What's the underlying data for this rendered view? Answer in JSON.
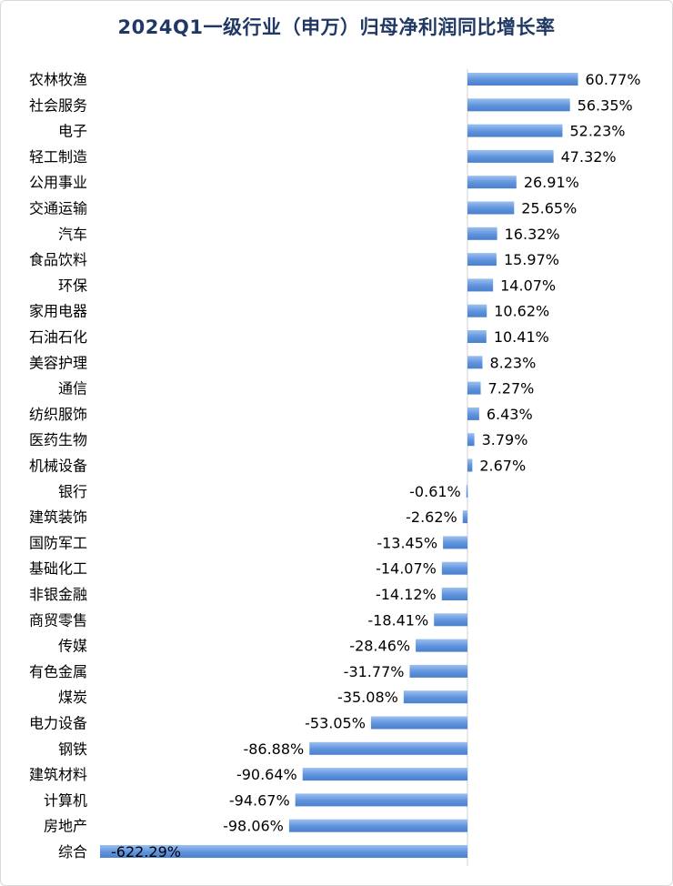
{
  "chart_data": {
    "type": "bar",
    "orientation": "horizontal",
    "title": "2024Q1一级行业（申万）归母净利润同比增长率",
    "xlabel": "",
    "ylabel": "",
    "grid": false,
    "legend": "none",
    "value_format": "{v}%",
    "bar_color": "#5b8fd9",
    "categories": [
      "农林牧渔",
      "社会服务",
      "电子",
      "轻工制造",
      "公用事业",
      "交通运输",
      "汽车",
      "食品饮料",
      "环保",
      "家用电器",
      "石油石化",
      "美容护理",
      "通信",
      "纺织服饰",
      "医药生物",
      "机械设备",
      "银行",
      "建筑装饰",
      "国防军工",
      "基础化工",
      "非银金融",
      "商贸零售",
      "传媒",
      "有色金属",
      "煤炭",
      "电力设备",
      "钢铁",
      "建筑材料",
      "计算机",
      "房地产",
      "综合"
    ],
    "values": [
      60.77,
      56.35,
      52.23,
      47.32,
      26.91,
      25.65,
      16.32,
      15.97,
      14.07,
      10.62,
      10.41,
      8.23,
      7.27,
      6.43,
      3.79,
      2.67,
      -0.61,
      -2.62,
      -13.45,
      -14.07,
      -14.12,
      -18.41,
      -28.46,
      -31.77,
      -35.08,
      -53.05,
      -86.88,
      -90.64,
      -94.67,
      -98.06,
      -622.29
    ],
    "value_labels": [
      "60.77%",
      "56.35%",
      "52.23%",
      "47.32%",
      "26.91%",
      "25.65%",
      "16.32%",
      "15.97%",
      "14.07%",
      "10.62%",
      "10.41%",
      "8.23%",
      "7.27%",
      "6.43%",
      "3.79%",
      "2.67%",
      "-0.61%",
      "-2.62%",
      "-13.45%",
      "-14.07%",
      "-14.12%",
      "-18.41%",
      "-28.46%",
      "-31.77%",
      "-35.08%",
      "-53.05%",
      "-86.88%",
      "-90.64%",
      "-94.67%",
      "-98.06%",
      "-622.29%"
    ]
  }
}
